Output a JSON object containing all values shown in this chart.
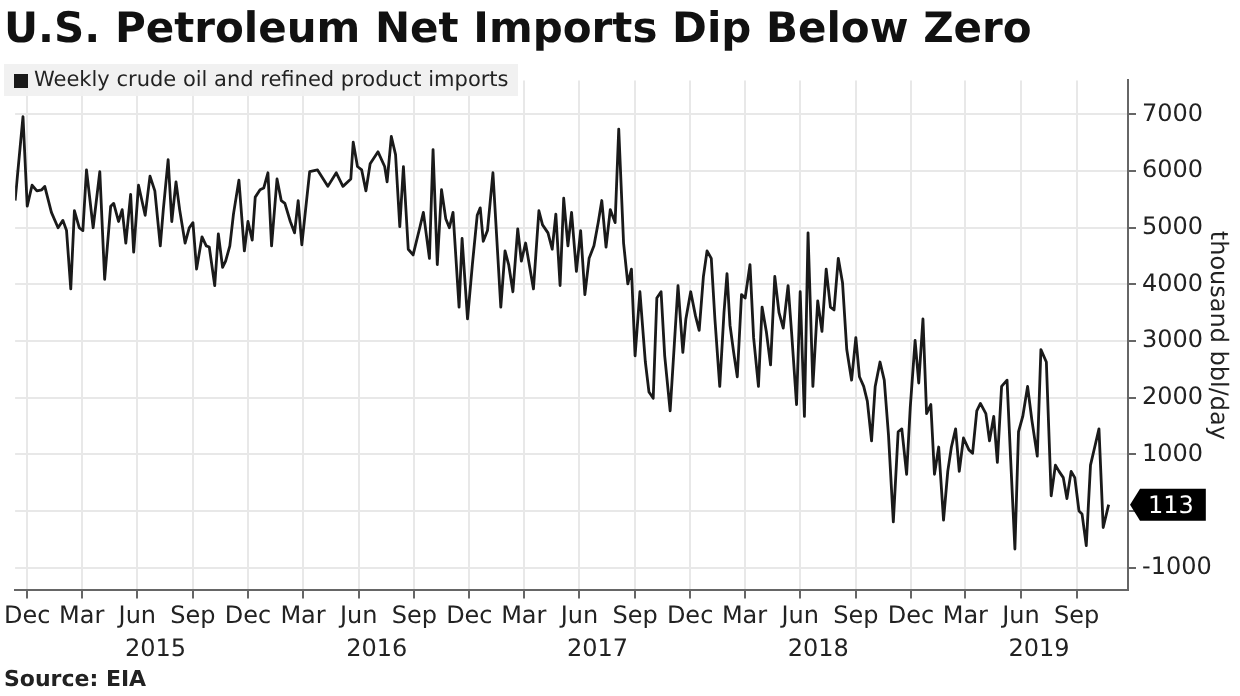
{
  "chart_data": {
    "type": "line",
    "title": "U.S. Petroleum Net Imports Dip Below Zero",
    "ylabel": "thousand bbl/day",
    "annotations": [
      {
        "text": "113",
        "x": "2019-10-24",
        "y": 113
      },
      "Source: EIA"
    ],
    "x2lim": [
      "2014-11-11",
      "2019-11-25"
    ],
    "x2ticks": [
      {
        "value": "2015-07-01",
        "label": "2015"
      },
      {
        "value": "2016-07-01",
        "label": "2016"
      },
      {
        "value": "2017-07-01",
        "label": "2017"
      },
      {
        "value": "2018-07-01",
        "label": "2018"
      },
      {
        "value": "2019-07-01",
        "label": "2019"
      }
    ],
    "x": [
      "2014-11-11",
      "2014-11-24",
      "2014-12-01",
      "2014-12-09",
      "2014-12-17",
      "2014-12-25",
      "2014-12-30",
      "2015-01-10",
      "2015-01-21",
      "2015-01-29",
      "2015-02-04",
      "2015-02-11",
      "2015-02-17",
      "2015-02-25",
      "2015-03-03",
      "2015-03-09",
      "2015-03-20",
      "2015-03-31",
      "2015-04-08",
      "2015-04-18",
      "2015-04-23",
      "2015-05-01",
      "2015-05-07",
      "2015-05-13",
      "2015-05-21",
      "2015-05-26",
      "2015-06-03",
      "2015-06-14",
      "2015-06-22",
      "2015-06-30",
      "2015-07-09",
      "2015-07-14",
      "2015-07-22",
      "2015-07-28",
      "2015-08-04",
      "2015-08-10",
      "2015-08-19",
      "2015-08-26",
      "2015-09-01",
      "2015-09-07",
      "2015-09-16",
      "2015-09-23",
      "2015-09-28",
      "2015-10-07",
      "2015-10-13",
      "2015-10-20",
      "2015-10-25",
      "2015-11-01",
      "2015-11-07",
      "2015-11-16",
      "2015-11-25",
      "2015-12-01",
      "2015-12-08",
      "2015-12-13",
      "2015-12-21",
      "2015-12-27",
      "2016-01-03",
      "2016-01-09",
      "2016-01-18",
      "2016-01-25",
      "2016-01-31",
      "2016-02-09",
      "2016-02-16",
      "2016-02-22",
      "2016-02-28",
      "2016-03-12",
      "2016-03-25",
      "2016-04-11",
      "2016-04-25",
      "2016-05-06",
      "2016-05-19",
      "2016-05-23",
      "2016-05-30",
      "2016-06-06",
      "2016-06-13",
      "2016-06-20",
      "2016-07-03",
      "2016-07-14",
      "2016-07-18",
      "2016-07-25",
      "2016-08-01",
      "2016-08-08",
      "2016-08-14",
      "2016-08-22",
      "2016-08-30",
      "2016-09-10",
      "2016-09-16",
      "2016-09-26",
      "2016-10-02",
      "2016-10-09",
      "2016-10-16",
      "2016-10-23",
      "2016-10-29",
      "2016-11-04",
      "2016-11-14",
      "2016-11-19",
      "2016-11-28",
      "2016-12-06",
      "2016-12-14",
      "2016-12-19",
      "2016-12-24",
      "2016-12-31",
      "2017-01-09",
      "2017-01-22",
      "2017-01-29",
      "2017-02-04",
      "2017-02-11",
      "2017-02-19",
      "2017-02-25",
      "2017-03-04",
      "2017-03-17",
      "2017-03-26",
      "2017-04-01",
      "2017-04-10",
      "2017-04-17",
      "2017-04-23",
      "2017-04-30",
      "2017-05-06",
      "2017-05-13",
      "2017-05-19",
      "2017-05-27",
      "2017-06-03",
      "2017-06-10",
      "2017-06-17",
      "2017-06-25",
      "2017-07-02",
      "2017-07-08",
      "2017-07-15",
      "2017-07-22",
      "2017-07-30",
      "2017-08-05",
      "2017-08-13",
      "2017-08-20",
      "2017-08-26",
      "2017-09-01",
      "2017-09-09",
      "2017-09-18",
      "2017-09-24",
      "2017-10-01",
      "2017-10-07",
      "2017-10-14",
      "2017-10-20",
      "2017-10-29",
      "2017-11-05",
      "2017-11-11",
      "2017-11-19",
      "2017-11-24",
      "2017-12-02",
      "2017-12-10",
      "2017-12-16",
      "2017-12-23",
      "2017-12-29",
      "2018-01-05",
      "2018-01-11",
      "2018-01-19",
      "2018-01-26",
      "2018-01-31",
      "2018-02-05",
      "2018-02-11",
      "2018-02-17",
      "2018-02-24",
      "2018-03-02",
      "2018-03-10",
      "2018-03-16",
      "2018-03-24",
      "2018-03-30",
      "2018-04-06",
      "2018-04-13",
      "2018-04-20",
      "2018-04-27",
      "2018-05-04",
      "2018-05-12",
      "2018-05-18",
      "2018-05-26",
      "2018-06-01",
      "2018-06-08",
      "2018-06-14",
      "2018-06-22",
      "2018-06-30",
      "2018-07-07",
      "2018-07-14",
      "2018-07-21",
      "2018-07-27",
      "2018-08-03",
      "2018-08-10",
      "2018-08-17",
      "2018-08-25",
      "2018-09-01",
      "2018-09-07",
      "2018-09-14",
      "2018-09-20",
      "2018-09-27",
      "2018-10-03",
      "2018-10-11",
      "2018-10-18",
      "2018-10-25",
      "2018-11-02",
      "2018-11-10",
      "2018-11-16",
      "2018-11-24",
      "2018-11-30",
      "2018-12-08",
      "2018-12-14",
      "2018-12-21",
      "2018-12-27",
      "2019-01-03",
      "2019-01-09",
      "2019-01-16",
      "2019-01-24",
      "2019-01-31",
      "2019-02-06",
      "2019-02-13",
      "2019-02-19",
      "2019-02-26",
      "2019-03-07",
      "2019-03-13",
      "2019-03-20",
      "2019-03-26",
      "2019-04-04",
      "2019-04-10",
      "2019-04-17",
      "2019-04-23",
      "2019-04-30",
      "2019-05-09",
      "2019-05-15",
      "2019-05-22",
      "2019-05-28",
      "2019-06-04",
      "2019-06-12",
      "2019-06-19",
      "2019-06-28",
      "2019-07-04",
      "2019-07-13",
      "2019-07-21",
      "2019-07-28",
      "2019-08-03",
      "2019-08-10",
      "2019-08-16",
      "2019-08-23",
      "2019-08-29",
      "2019-09-05",
      "2019-09-10",
      "2019-09-17",
      "2019-09-24",
      "2019-10-01",
      "2019-10-08",
      "2019-10-15",
      "2019-10-24"
    ],
    "series": [
      {
        "name": "Weekly crude oil and refined product imports",
        "color": "#1a1a1a",
        "values": [
          5480,
          6960,
          5380,
          5750,
          5650,
          5670,
          5730,
          5270,
          5000,
          5130,
          4950,
          3920,
          5300,
          5000,
          4950,
          6020,
          5000,
          5990,
          4090,
          5380,
          5430,
          5110,
          5320,
          4730,
          5590,
          4570,
          5750,
          5220,
          5910,
          5650,
          4680,
          5320,
          6200,
          5110,
          5810,
          5320,
          4730,
          5000,
          5090,
          4270,
          4840,
          4680,
          4660,
          3980,
          4890,
          4300,
          4410,
          4680,
          5240,
          5840,
          4590,
          5110,
          4780,
          5540,
          5670,
          5700,
          5970,
          4680,
          5860,
          5480,
          5430,
          5110,
          4910,
          5480,
          4700,
          5990,
          6020,
          5730,
          5970,
          5730,
          5860,
          6510,
          6080,
          6020,
          5650,
          6130,
          6340,
          6080,
          5810,
          6610,
          6290,
          5020,
          6080,
          4620,
          4520,
          5000,
          5270,
          4460,
          6380,
          4350,
          5670,
          5160,
          5000,
          5270,
          3600,
          4810,
          3390,
          4350,
          5220,
          5350,
          4760,
          4950,
          5970,
          3600,
          4590,
          4350,
          3870,
          4980,
          4410,
          4730,
          3920,
          5300,
          5050,
          4910,
          4620,
          5240,
          3980,
          5520,
          4680,
          5270,
          4230,
          4950,
          3820,
          4460,
          4680,
          5090,
          5480,
          4660,
          5320,
          5090,
          6740,
          4730,
          4010,
          4270,
          2740,
          3870,
          2630,
          2100,
          1990,
          3760,
          3870,
          2740,
          1770,
          2960,
          3980,
          2800,
          3390,
          3870,
          3440,
          3190,
          4140,
          4590,
          4460,
          3390,
          2200,
          3500,
          4190,
          3280,
          2800,
          2370,
          3820,
          3760,
          4350,
          3060,
          2200,
          3600,
          3170,
          2580,
          4140,
          3500,
          3230,
          3980,
          3120,
          1880,
          3870,
          1670,
          4910,
          2200,
          3710,
          3170,
          4270,
          3600,
          3550,
          4460,
          4030,
          2850,
          2310,
          3060,
          2370,
          2200,
          1940,
          1240,
          2200,
          2630,
          2310,
          1340,
          -190,
          1400,
          1450,
          650,
          1830,
          3010,
          2260,
          3390,
          1720,
          1880,
          650,
          1130,
          -160,
          700,
          1130,
          1450,
          700,
          1290,
          1080,
          1020,
          1770,
          1900,
          1720,
          1240,
          1670,
          860,
          2200,
          2310,
          910,
          -670,
          1400,
          1670,
          2200,
          1610,
          970,
          2850,
          2630,
          270,
          810,
          700,
          590,
          220,
          700,
          590,
          0,
          -50,
          -610,
          810,
          1130,
          1450,
          -290,
          113
        ]
      }
    ],
    "xlim": [
      "2014-11-11",
      "2019-11-25"
    ],
    "xticks": [
      {
        "value": "2014-12-01",
        "label": "Dec"
      },
      {
        "value": "2015-03-01",
        "label": "Mar"
      },
      {
        "value": "2015-06-01",
        "label": "Jun"
      },
      {
        "value": "2015-09-01",
        "label": "Sep"
      },
      {
        "value": "2015-12-01",
        "label": "Dec"
      },
      {
        "value": "2016-03-01",
        "label": "Mar"
      },
      {
        "value": "2016-06-01",
        "label": "Jun"
      },
      {
        "value": "2016-09-01",
        "label": "Sep"
      },
      {
        "value": "2016-12-01",
        "label": "Dec"
      },
      {
        "value": "2017-03-01",
        "label": "Mar"
      },
      {
        "value": "2017-06-01",
        "label": "Jun"
      },
      {
        "value": "2017-09-01",
        "label": "Sep"
      },
      {
        "value": "2017-12-01",
        "label": "Dec"
      },
      {
        "value": "2018-03-01",
        "label": "Mar"
      },
      {
        "value": "2018-06-01",
        "label": "Jun"
      },
      {
        "value": "2018-09-01",
        "label": "Sep"
      },
      {
        "value": "2018-12-01",
        "label": "Dec"
      },
      {
        "value": "2019-03-01",
        "label": "Mar"
      },
      {
        "value": "2019-06-01",
        "label": "Jun"
      },
      {
        "value": "2019-09-01",
        "label": "Sep"
      }
    ],
    "ylim": [
      -1400,
      7600
    ],
    "yticks": [
      -1000,
      {
        "value": 0,
        "label": null
      },
      1000,
      2000,
      3000,
      4000,
      5000,
      6000,
      7000
    ],
    "grid": true,
    "legend": "top left",
    "marker": "none",
    "line_style": "solid"
  }
}
